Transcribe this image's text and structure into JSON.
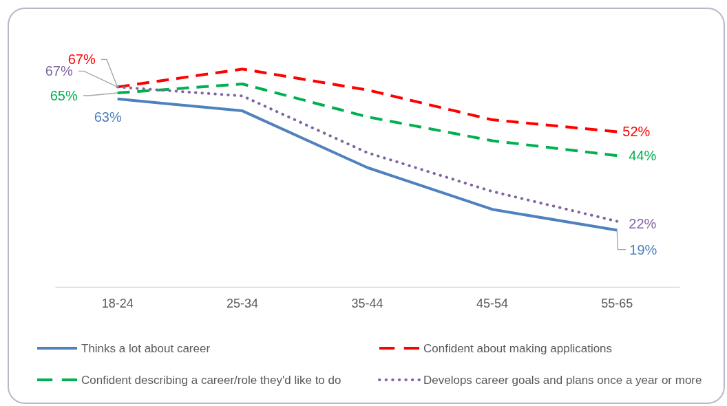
{
  "chart_data": {
    "type": "line",
    "categories": [
      "18-24",
      "25-34",
      "35-44",
      "45-54",
      "55-65"
    ],
    "tick_labels": "x",
    "legend": "bottom",
    "series": [
      {
        "name": "Thinks a lot about career",
        "color": "#4f81bd",
        "line_style": "solid",
        "values": [
          63,
          59,
          40,
          26,
          19
        ],
        "value_labels": [
          "63%",
          null,
          null,
          null,
          "19%"
        ]
      },
      {
        "name": "Confident about making applications",
        "color": "#ff0000",
        "line_style": "dashed",
        "values": [
          67,
          73,
          66,
          56,
          52
        ],
        "value_labels": [
          "67%",
          null,
          null,
          null,
          "52%"
        ]
      },
      {
        "name": "Confident describing a career/role they'd like to do",
        "color": "#00b050",
        "line_style": "dashed",
        "values": [
          65,
          68,
          57,
          49,
          44
        ],
        "value_labels": [
          "65%",
          null,
          null,
          null,
          "44%"
        ]
      },
      {
        "name": "Develops career goals and plans once a year or more",
        "color": "#8064a2",
        "line_style": "dotted",
        "values": [
          67,
          64,
          45,
          32,
          22
        ],
        "value_labels": [
          "67%",
          null,
          null,
          null,
          "22%"
        ]
      }
    ]
  }
}
